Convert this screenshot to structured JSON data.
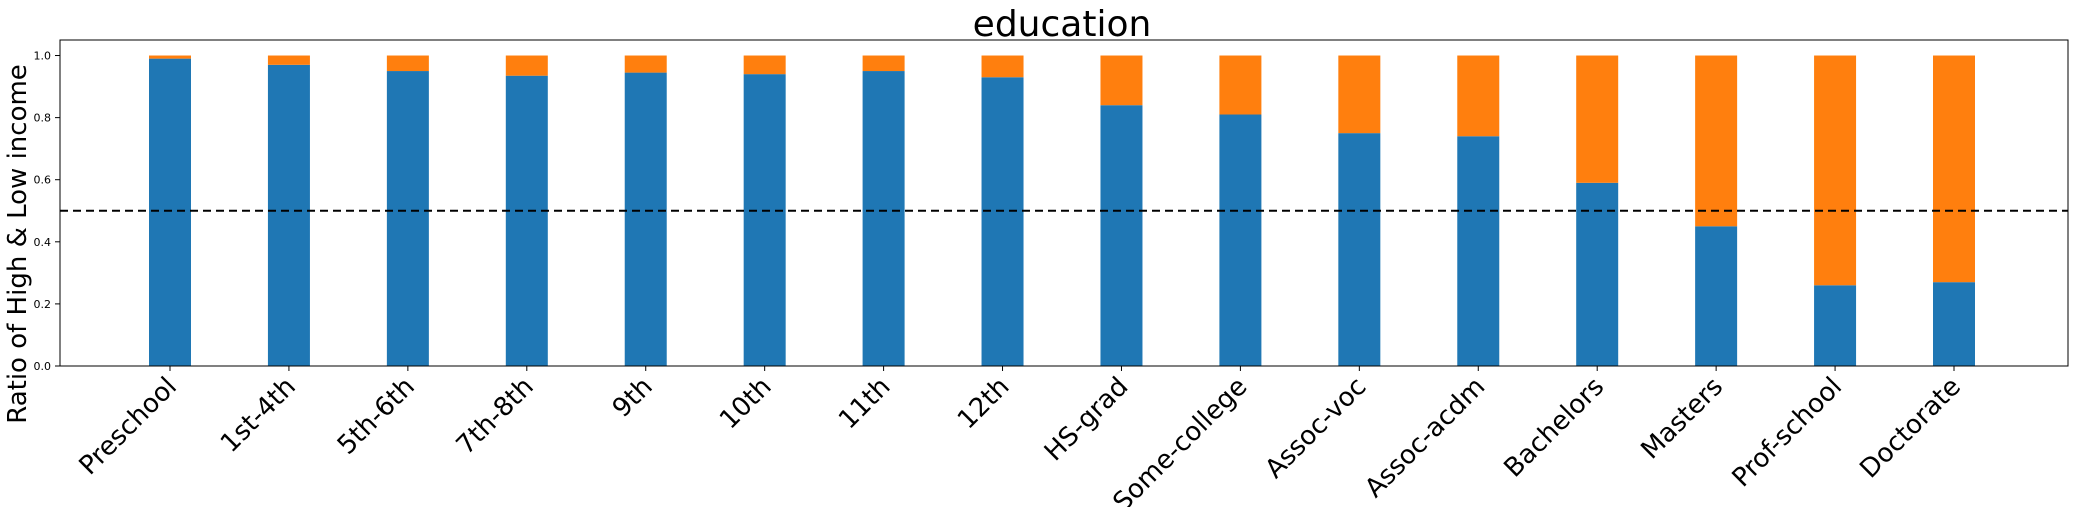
{
  "chart_data": {
    "type": "bar",
    "stacked": true,
    "title": "education",
    "xlabel": "",
    "ylabel": "Ratio of High & Low income",
    "ylim": [
      0,
      1.05
    ],
    "yticks": [
      "0.0",
      "0.2",
      "0.4",
      "0.6",
      "0.8",
      "1.0"
    ],
    "grid": false,
    "legend": "none",
    "categories": [
      "Preschool",
      "1st-4th",
      "5th-6th",
      "7th-8th",
      "9th",
      "10th",
      "11th",
      "12th",
      "HS-grad",
      "Some-college",
      "Assoc-voc",
      "Assoc-acdm",
      "Bachelors",
      "Masters",
      "Prof-school",
      "Doctorate"
    ],
    "series": [
      {
        "color": "#1f77b4",
        "values": [
          0.99,
          0.97,
          0.95,
          0.935,
          0.945,
          0.94,
          0.95,
          0.93,
          0.84,
          0.81,
          0.75,
          0.74,
          0.59,
          0.45,
          0.26,
          0.27
        ]
      },
      {
        "color": "#ff7f0e",
        "values": [
          0.01,
          0.03,
          0.05,
          0.065,
          0.055,
          0.06,
          0.05,
          0.07,
          0.16,
          0.19,
          0.25,
          0.26,
          0.41,
          0.55,
          0.74,
          0.73
        ]
      }
    ],
    "reference_line": {
      "y": 0.5,
      "style": "dashed",
      "color": "#000000"
    }
  }
}
